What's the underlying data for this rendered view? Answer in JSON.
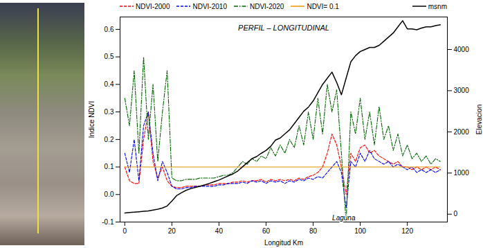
{
  "chart_data": {
    "type": "line",
    "title": "PERFIL – LONGITUDINAL",
    "x_label": "Longitud Km",
    "y_label": "Indice NDVI",
    "y2_label": "Elevacion",
    "legend": "top",
    "xlim": [
      -2,
      137
    ],
    "xticks": [
      0,
      20,
      40,
      60,
      80,
      100,
      120
    ],
    "ylim": [
      -0.1,
      0.645
    ],
    "yticks": [
      -0.1,
      {
        "value": 0,
        "label": "0.0"
      },
      0.1,
      0.2,
      0.3,
      0.4,
      0.5,
      0.6
    ],
    "y2lim": [
      -190,
      4790
    ],
    "y2ticks": [
      0,
      1000,
      2000,
      3000,
      4000
    ],
    "x": [
      0,
      2,
      4,
      6,
      8,
      10,
      12,
      14,
      16,
      18,
      20,
      22,
      24,
      26,
      28,
      30,
      32,
      34,
      36,
      38,
      40,
      42,
      44,
      46,
      48,
      50,
      52,
      54,
      56,
      58,
      60,
      62,
      64,
      66,
      68,
      70,
      72,
      74,
      76,
      78,
      80,
      82,
      84,
      86,
      88,
      90,
      92,
      94,
      96,
      98,
      100,
      102,
      104,
      106,
      108,
      110,
      112,
      114,
      116,
      118,
      120,
      122,
      124,
      126,
      128,
      130,
      132,
      134
    ],
    "series": [
      {
        "name": "NDVI-2000",
        "color": "#ff0000",
        "line_style": "dashed",
        "values": [
          0.1,
          0.05,
          0.04,
          0.04,
          0.2,
          0.3,
          0.12,
          0.06,
          0.1,
          0.05,
          0.03,
          0.025,
          0.025,
          0.03,
          0.03,
          0.03,
          0.03,
          0.035,
          0.035,
          0.035,
          0.04,
          0.04,
          0.04,
          0.045,
          0.045,
          0.05,
          0.045,
          0.05,
          0.05,
          0.055,
          0.045,
          0.055,
          0.05,
          0.055,
          0.05,
          0.055,
          0.05,
          0.06,
          0.055,
          0.065,
          0.07,
          0.08,
          0.1,
          0.15,
          0.22,
          0.18,
          0.1,
          0.0,
          0.15,
          0.12,
          0.17,
          0.18,
          0.15,
          0.16,
          0.14,
          0.13,
          0.12,
          0.11,
          0.12,
          0.1,
          0.1,
          0.09,
          0.1,
          0.09,
          0.1,
          0.09,
          0.1,
          0.09
        ]
      },
      {
        "name": "NDVI-2010",
        "color": "#0000ff",
        "line_style": "dashed",
        "values": [
          0.15,
          0.08,
          0.2,
          0.05,
          0.25,
          0.3,
          0.15,
          0.05,
          0.12,
          0.08,
          0.03,
          0.02,
          0.02,
          0.025,
          0.025,
          0.03,
          0.03,
          0.03,
          0.03,
          0.03,
          0.035,
          0.035,
          0.04,
          0.04,
          0.04,
          0.045,
          0.04,
          0.05,
          0.045,
          0.05,
          0.04,
          0.05,
          0.045,
          0.05,
          0.04,
          0.05,
          0.045,
          0.055,
          0.05,
          0.06,
          0.055,
          0.065,
          0.06,
          0.08,
          0.1,
          0.12,
          0.08,
          -0.05,
          0.12,
          0.1,
          0.15,
          0.12,
          0.16,
          0.13,
          0.12,
          0.11,
          0.12,
          0.1,
          0.11,
          0.1,
          0.09,
          0.1,
          0.08,
          0.09,
          0.08,
          0.09,
          0.08,
          0.09
        ]
      },
      {
        "name": "NDVI-2020",
        "color": "#006400",
        "line_style": "dashdot",
        "values": [
          0.35,
          0.25,
          0.45,
          0.15,
          0.5,
          0.2,
          0.4,
          0.12,
          0.3,
          0.45,
          0.06,
          0.05,
          0.05,
          0.055,
          0.055,
          0.055,
          0.06,
          0.06,
          0.06,
          0.06,
          0.065,
          0.07,
          0.07,
          0.08,
          0.1,
          0.12,
          0.11,
          0.13,
          0.12,
          0.14,
          0.13,
          0.17,
          0.14,
          0.18,
          0.15,
          0.2,
          0.17,
          0.25,
          0.18,
          0.3,
          0.2,
          0.35,
          0.22,
          0.4,
          0.3,
          0.38,
          0.15,
          -0.1,
          0.3,
          0.22,
          0.35,
          0.2,
          0.3,
          0.18,
          0.32,
          0.2,
          0.25,
          0.16,
          0.22,
          0.14,
          0.18,
          0.13,
          0.15,
          0.12,
          0.14,
          0.11,
          0.13,
          0.12
        ]
      },
      {
        "name": "NDVI= 0.1",
        "color": "#e69500",
        "line_style": "solid",
        "x": [
          0,
          134
        ],
        "values": [
          0.1,
          0.1
        ]
      },
      {
        "name": "msnm",
        "color": "#000000",
        "line_style": "solid",
        "axis": "y2",
        "values": [
          30,
          40,
          50,
          60,
          70,
          80,
          100,
          120,
          150,
          200,
          320,
          450,
          520,
          580,
          620,
          650,
          680,
          710,
          750,
          790,
          830,
          880,
          930,
          980,
          1050,
          1150,
          1250,
          1350,
          1400,
          1480,
          1550,
          1650,
          1800,
          1850,
          1950,
          2050,
          2200,
          2350,
          2500,
          2600,
          2750,
          2950,
          3150,
          3300,
          3450,
          3200,
          2900,
          3300,
          3700,
          3850,
          3950,
          4000,
          4050,
          4050,
          4100,
          4200,
          4300,
          4400,
          4550,
          4700,
          4500,
          4500,
          4480,
          4520,
          4550,
          4550,
          4580,
          4600
        ]
      }
    ],
    "annotations": [
      {
        "text": "Laguna",
        "x": 93,
        "y": -0.085
      }
    ]
  }
}
